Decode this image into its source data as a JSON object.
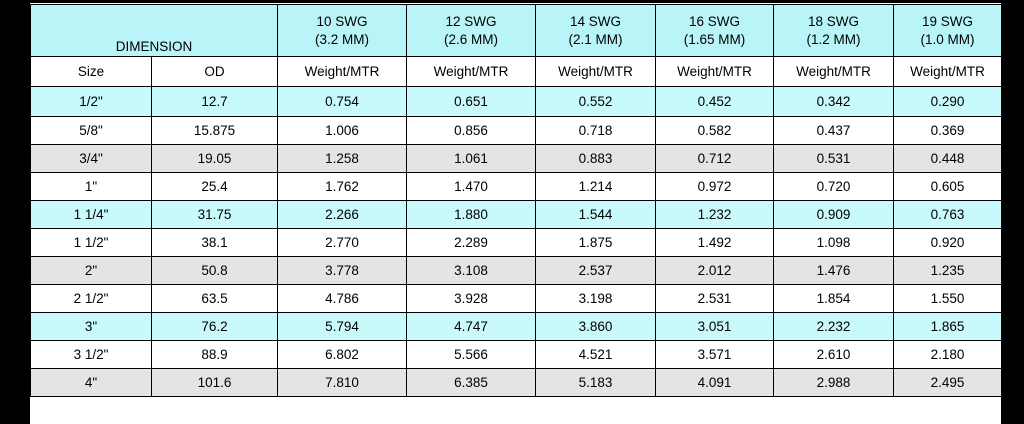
{
  "header": {
    "dimension_label": "DIMENSION",
    "gauges": [
      {
        "swg": "10 SWG",
        "mm": "(3.2 MM)"
      },
      {
        "swg": "12 SWG",
        "mm": "(2.6 MM)"
      },
      {
        "swg": "14 SWG",
        "mm": "(2.1 MM)"
      },
      {
        "swg": "16 SWG",
        "mm": "(1.65 MM)"
      },
      {
        "swg": "18 SWG",
        "mm": "(1.2 MM)"
      },
      {
        "swg": "19 SWG",
        "mm": "(1.0 MM)"
      }
    ],
    "size_label": "Size",
    "od_label": "OD",
    "weight_label": "Weight/MTR"
  },
  "rows": [
    {
      "shade": "cyan",
      "size": "1/2\"",
      "od": "12.7",
      "w": [
        "0.754",
        "0.651",
        "0.552",
        "0.452",
        "0.342",
        "0.290"
      ]
    },
    {
      "shade": "white",
      "size": "5/8\"",
      "od": "15.875",
      "w": [
        "1.006",
        "0.856",
        "0.718",
        "0.582",
        "0.437",
        "0.369"
      ]
    },
    {
      "shade": "gray",
      "size": "3/4\"",
      "od": "19.05",
      "w": [
        "1.258",
        "1.061",
        "0.883",
        "0.712",
        "0.531",
        "0.448"
      ]
    },
    {
      "shade": "white",
      "size": "1\"",
      "od": "25.4",
      "w": [
        "1.762",
        "1.470",
        "1.214",
        "0.972",
        "0.720",
        "0.605"
      ]
    },
    {
      "shade": "cyan",
      "size": "1 1/4\"",
      "od": "31.75",
      "w": [
        "2.266",
        "1.880",
        "1.544",
        "1.232",
        "0.909",
        "0.763"
      ]
    },
    {
      "shade": "white",
      "size": "1 1/2\"",
      "od": "38.1",
      "w": [
        "2.770",
        "2.289",
        "1.875",
        "1.492",
        "1.098",
        "0.920"
      ]
    },
    {
      "shade": "gray",
      "size": "2\"",
      "od": "50.8",
      "w": [
        "3.778",
        "3.108",
        "2.537",
        "2.012",
        "1.476",
        "1.235"
      ]
    },
    {
      "shade": "white",
      "size": "2 1/2\"",
      "od": "63.5",
      "w": [
        "4.786",
        "3.928",
        "3.198",
        "2.531",
        "1.854",
        "1.550"
      ]
    },
    {
      "shade": "cyan",
      "size": "3\"",
      "od": "76.2",
      "w": [
        "5.794",
        "4.747",
        "3.860",
        "3.051",
        "2.232",
        "1.865"
      ]
    },
    {
      "shade": "white",
      "size": "3 1/2\"",
      "od": "88.9",
      "w": [
        "6.802",
        "5.566",
        "4.521",
        "3.571",
        "2.610",
        "2.180"
      ]
    },
    {
      "shade": "gray",
      "size": "4\"",
      "od": "101.6",
      "w": [
        "7.810",
        "6.385",
        "5.183",
        "4.091",
        "2.988",
        "2.495"
      ]
    }
  ]
}
